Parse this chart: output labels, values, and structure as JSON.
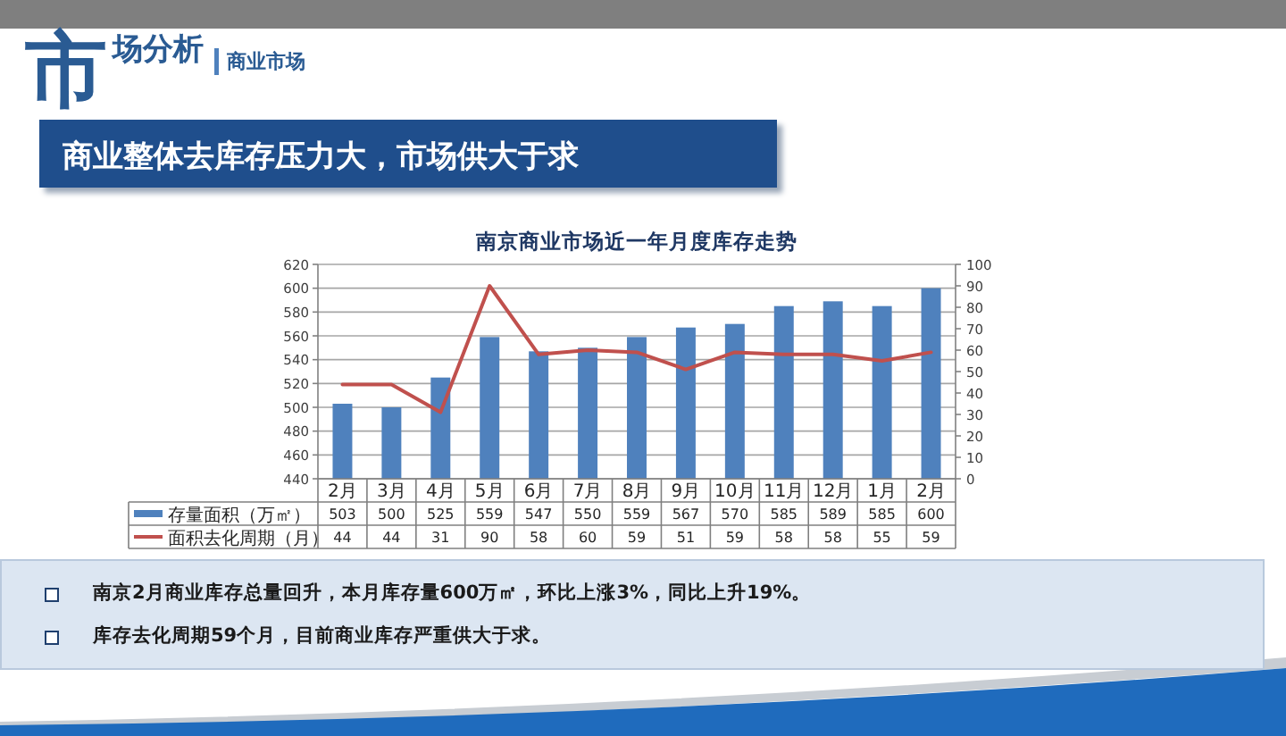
{
  "chart_data": {
    "type": "bar",
    "title": "南京商业市场近一年月度库存走势",
    "categories": [
      "2月",
      "3月",
      "4月",
      "5月",
      "6月",
      "7月",
      "8月",
      "9月",
      "10月",
      "11月",
      "12月",
      "1月",
      "2月"
    ],
    "series": [
      {
        "name": "存量面积（万㎡）",
        "color": "#4f81bd",
        "values": [
          503,
          500,
          525,
          559,
          547,
          550,
          559,
          567,
          570,
          585,
          589,
          585,
          600
        ]
      },
      {
        "name": "面积去化周期（月）",
        "type": "line",
        "axis": "y2",
        "color": "#c0504d",
        "values": [
          44,
          44,
          31,
          90,
          58,
          60,
          59,
          51,
          59,
          58,
          58,
          55,
          59
        ]
      }
    ],
    "ylim": [
      440,
      620
    ],
    "yticks": [
      440,
      460,
      480,
      500,
      520,
      540,
      560,
      580,
      600,
      620
    ],
    "y2lim": [
      0,
      100
    ],
    "y2ticks": [
      0,
      10,
      20,
      30,
      40,
      50,
      60,
      70,
      80,
      90,
      100
    ],
    "grid": "y",
    "data_labels": true,
    "legend": "bottom",
    "marker": "none",
    "annotations": [
      "市场分析",
      "商业市场",
      "商业整体去库存压力大，市场供大于求",
      "南京2月商业库存总量回升，本月库存量600万㎡，环比上涨3%，同比上升19%。",
      "库存去化周期59个月，目前商业库存严重供大于求。"
    ]
  }
}
